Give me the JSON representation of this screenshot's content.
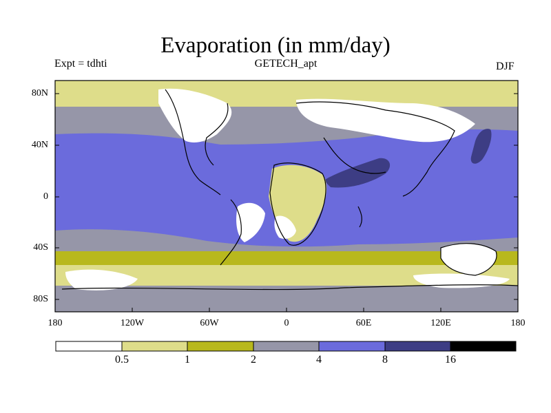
{
  "title": "Evaporation (in mm/day)",
  "experiment_label": "Expt = tdhti",
  "dataset": "GETECH_apt",
  "season": "DJF",
  "map": {
    "latitude_ticks": [
      "80N",
      "40N",
      "0",
      "40S",
      "80S"
    ],
    "longitude_ticks": [
      "180",
      "120W",
      "60W",
      "0",
      "60E",
      "120E",
      "180"
    ]
  },
  "colorbar": {
    "labels": [
      "0.5",
      "1",
      "2",
      "4",
      "8",
      "16"
    ],
    "colors": [
      "#ffffff",
      "#dedd8a",
      "#b8b81d",
      "#9696a8",
      "#6b6bdc",
      "#3d3d84",
      "#000000"
    ]
  },
  "colors": {
    "water_background": "#6b6bdc",
    "coastline": "#000000"
  }
}
